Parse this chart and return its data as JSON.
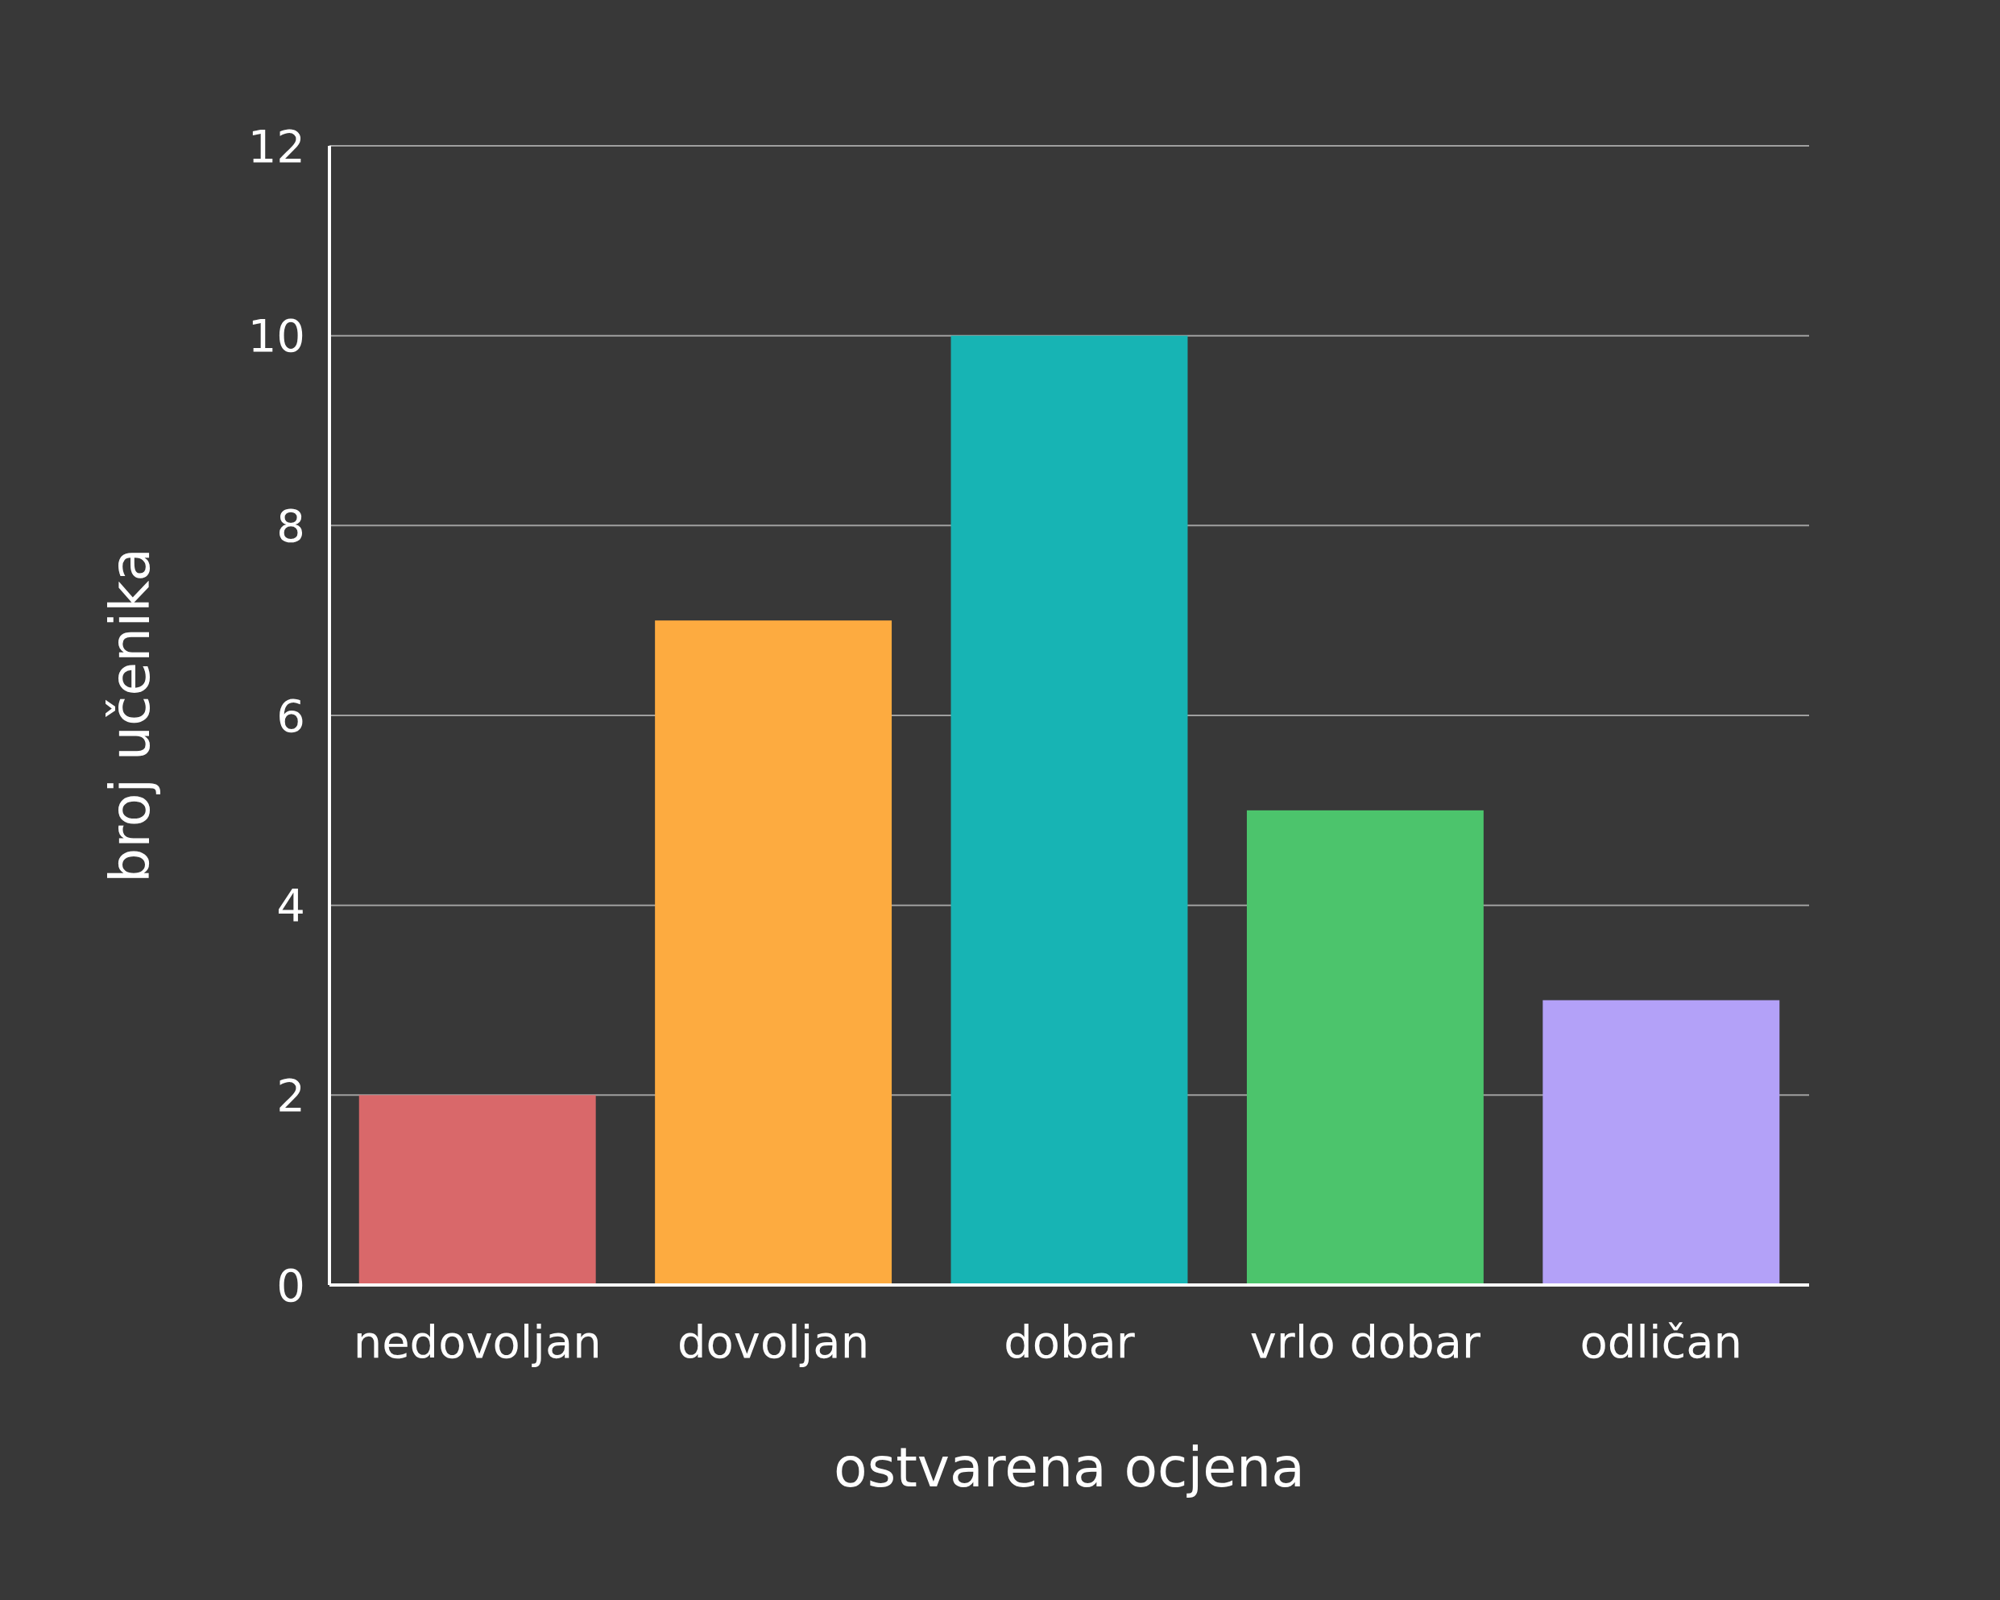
{
  "chart_data": {
    "type": "bar",
    "xlabel": "ostvarena ocjena",
    "ylabel": "broj učenika",
    "categories": [
      "nedovoljan",
      "dovoljan",
      "dobar",
      "vrlo dobar",
      "odličan"
    ],
    "values": [
      2,
      7,
      10,
      5,
      3
    ],
    "colors": [
      "#d9686a",
      "#fdab40",
      "#17b4b4",
      "#4cc46c",
      "#b3a1f8"
    ],
    "ylim": [
      0,
      12
    ],
    "yticks": [
      0,
      2,
      4,
      6,
      8,
      10,
      12
    ],
    "grid": "y"
  }
}
